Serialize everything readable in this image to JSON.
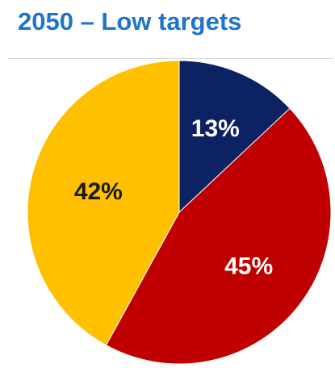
{
  "header": {
    "title": "2050 – Low targets"
  },
  "chart_data": {
    "type": "pie",
    "title": "2050 – Low targets",
    "slices": [
      {
        "label": "13%",
        "value": 13,
        "color": "#0d2263",
        "label_color": "#ffffff"
      },
      {
        "label": "45%",
        "value": 45,
        "color": "#c00000",
        "label_color": "#ffffff"
      },
      {
        "label": "42%",
        "value": 42,
        "color": "#ffc000",
        "label_color": "#1a1a1a"
      }
    ]
  }
}
